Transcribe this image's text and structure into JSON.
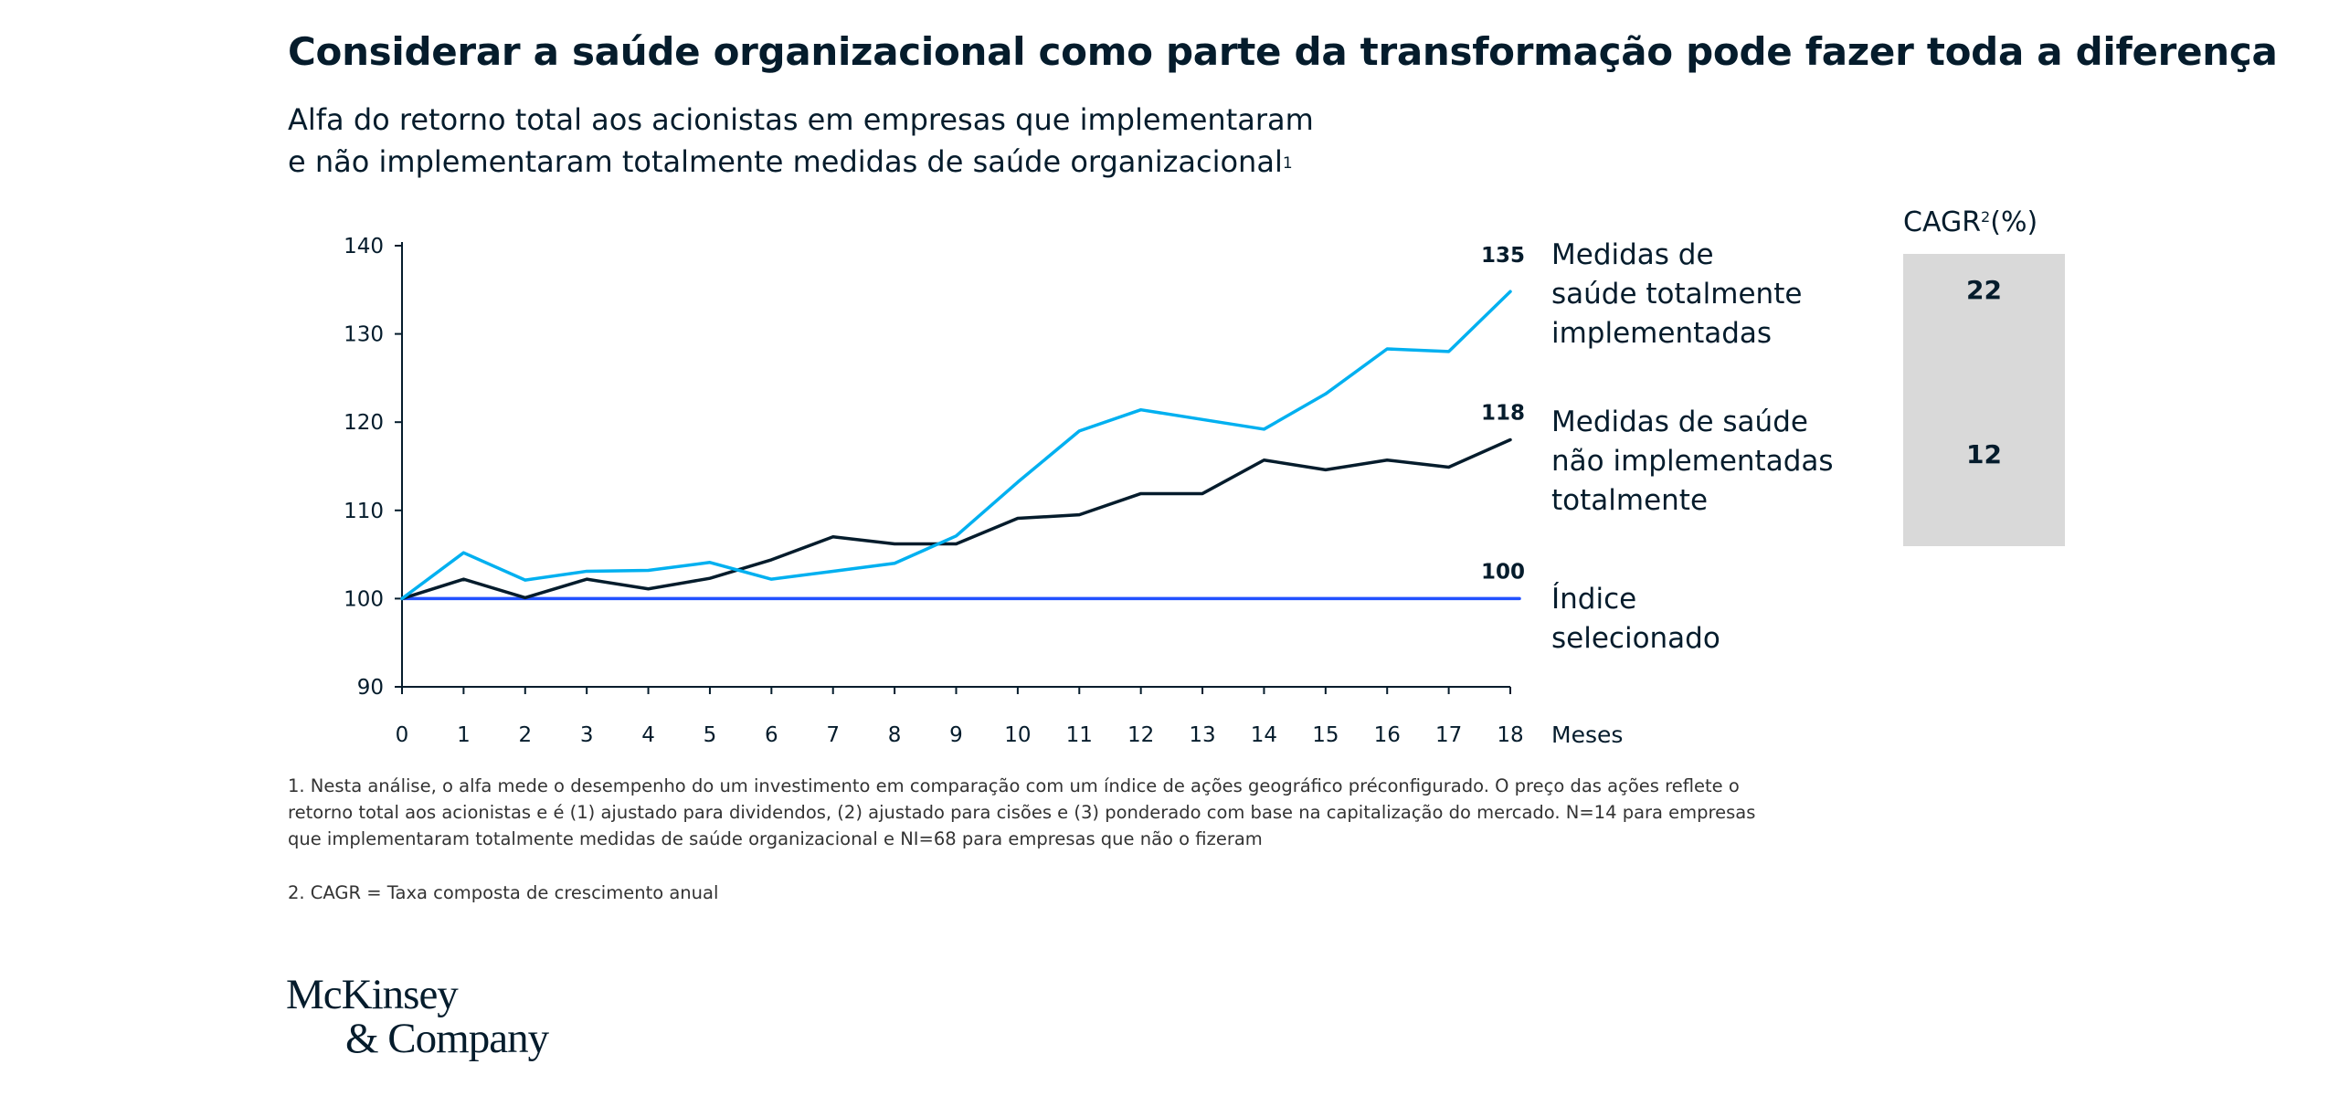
{
  "header": {
    "title": "Considerar a saúde organizacional como parte da transformação pode fazer toda a diferença",
    "subtitle_line1": "Alfa do retorno total aos acionistas em empresas que implementaram",
    "subtitle_line2": "e não implementaram totalmente medidas de saúde organizacional",
    "subtitle_footnote_mark": "1"
  },
  "chart_data": {
    "type": "line",
    "x": [
      0,
      1,
      2,
      3,
      4,
      5,
      6,
      7,
      8,
      9,
      10,
      11,
      12,
      13,
      14,
      15,
      16,
      17,
      18
    ],
    "xlabel": "Meses",
    "ylim": [
      90,
      140
    ],
    "yticks": [
      90,
      100,
      110,
      120,
      130,
      140
    ],
    "grid": false,
    "series": [
      {
        "name": "Medidas de saúde totalmente implementadas",
        "color": "#00b0f0",
        "values": [
          100,
          105.2,
          102.1,
          103.1,
          103.2,
          104.1,
          102.2,
          103.1,
          104,
          107.1,
          113.2,
          119,
          121.4,
          120.3,
          119.2,
          123.2,
          128.3,
          128,
          134.8
        ],
        "end_label": "135"
      },
      {
        "name": "Medidas de saúde não implementadas totalmente",
        "color": "#051c2c",
        "values": [
          100,
          102.2,
          100.1,
          102.2,
          101.1,
          102.3,
          104.4,
          107,
          106.2,
          106.2,
          109.1,
          109.5,
          111.9,
          111.9,
          115.7,
          114.6,
          115.7,
          114.9,
          118
        ],
        "end_label": "118"
      },
      {
        "name": "Índice selecionado",
        "color": "#2251ff",
        "values": [
          100,
          100,
          100,
          100,
          100,
          100,
          100,
          100,
          100,
          100,
          100,
          100,
          100,
          100,
          100,
          100,
          100,
          100,
          100
        ],
        "end_label": "100"
      }
    ]
  },
  "legend": {
    "full_line1": "Medidas de",
    "full_line2": "saúde totalmente",
    "full_line3": "implementadas",
    "partial_line1": "Medidas de saúde",
    "partial_line2": "não implementadas",
    "partial_line3": "totalmente",
    "index_line1": "Índice",
    "index_line2": "selecionado"
  },
  "cagr": {
    "header": "CAGR",
    "header_mark": "2",
    "header_unit": "(%)",
    "full_value": "22",
    "partial_value": "12"
  },
  "footnotes": {
    "note1_line1": "1. Nesta análise, o alfa mede o desempenho do um investimento em comparação com um índice de ações geográfico préconfigurado. O preço das ações reflete o",
    "note1_line2": "retorno total aos acionistas e é (1) ajustado para dividendos, (2) ajustado para cisões e (3) ponderado com base na capitalização do mercado. N=14 para empresas",
    "note1_line3": "que implementaram totalmente medidas de saúde organizacional e NI=68 para empresas que não o fizeram",
    "note2": "2. CAGR = Taxa composta de crescimento anual"
  },
  "logo": {
    "line1": "McKinsey",
    "line2": "& Company"
  }
}
